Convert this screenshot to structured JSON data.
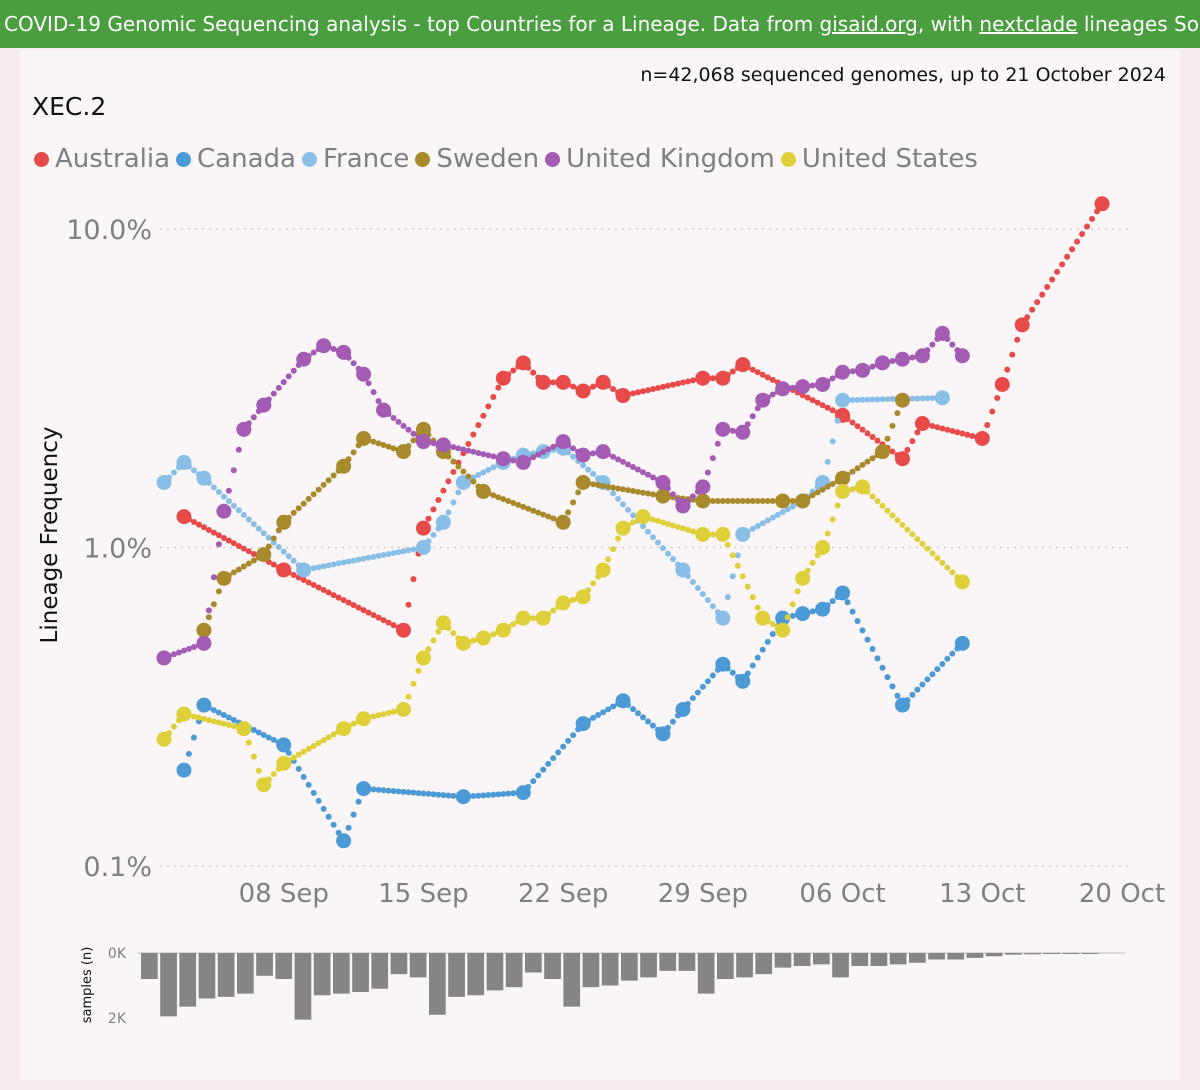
{
  "banner": {
    "part1": "COVID-19 Genomic Sequencing analysis - top Countries for a Lineage. Data from ",
    "link1": "gisaid.org",
    "part2": ", with ",
    "link2": "nextclade",
    "part3": " lineages So"
  },
  "note": "n=42,068 sequenced genomes, up to 21 October 2024",
  "lineage": "XEC.2",
  "colors": {
    "Australia": "#e84a4a",
    "Canada": "#4b9ad6",
    "France": "#89bfe6",
    "Sweden": "#a88a2c",
    "United Kingdom": "#a35bb4",
    "United States": "#dfd03a",
    "bars": "#858585",
    "grid": "#c8c8c8"
  },
  "chart_data": [
    {
      "type": "line",
      "title": "XEC.2",
      "ylabel": "Lineage Frequency",
      "xlabel": "",
      "yscale": "log",
      "ylim_percent": [
        0.1,
        12
      ],
      "y_ticks": [
        "10.0%",
        "1.0%",
        "0.1%"
      ],
      "y_tick_values": [
        10,
        1,
        0.1
      ],
      "x_ticks": [
        "08 Sep",
        "15 Sep",
        "22 Sep",
        "29 Sep",
        "06 Oct",
        "13 Oct",
        "20 Oct"
      ],
      "x_tick_days": [
        7,
        14,
        21,
        28,
        35,
        42,
        49
      ],
      "x_range_days": [
        1,
        49
      ],
      "legend": [
        "Australia",
        "Canada",
        "France",
        "Sweden",
        "United Kingdom",
        "United States"
      ],
      "legend_position": "top-left",
      "grid": "horizontal dotted",
      "series": [
        {
          "name": "Australia",
          "points": [
            [
              2,
              1.25
            ],
            [
              7,
              0.85
            ],
            [
              13,
              0.55
            ],
            [
              14,
              1.15
            ],
            [
              18,
              3.4
            ],
            [
              19,
              3.8
            ],
            [
              20,
              3.3
            ],
            [
              21,
              3.3
            ],
            [
              22,
              3.1
            ],
            [
              23,
              3.3
            ],
            [
              24,
              3.0
            ],
            [
              28,
              3.4
            ],
            [
              29,
              3.4
            ],
            [
              30,
              3.75
            ],
            [
              35,
              2.6
            ],
            [
              38,
              1.9
            ],
            [
              39,
              2.45
            ],
            [
              42,
              2.2
            ],
            [
              43,
              3.25
            ],
            [
              44,
              5.0
            ],
            [
              48,
              12.0
            ]
          ]
        },
        {
          "name": "Canada",
          "points": [
            [
              2,
              0.2
            ],
            [
              3,
              0.32
            ],
            [
              7,
              0.24
            ],
            [
              10,
              0.12
            ],
            [
              11,
              0.175
            ],
            [
              16,
              0.165
            ],
            [
              19,
              0.17
            ],
            [
              22,
              0.28
            ],
            [
              24,
              0.33
            ],
            [
              26,
              0.26
            ],
            [
              27,
              0.31
            ],
            [
              29,
              0.43
            ],
            [
              30,
              0.38
            ],
            [
              32,
              0.6
            ],
            [
              33,
              0.62
            ],
            [
              34,
              0.64
            ],
            [
              35,
              0.72
            ],
            [
              38,
              0.32
            ],
            [
              41,
              0.5
            ]
          ]
        },
        {
          "name": "France",
          "points": [
            [
              1,
              1.6
            ],
            [
              2,
              1.85
            ],
            [
              3,
              1.65
            ],
            [
              8,
              0.85
            ],
            [
              14,
              1.0
            ],
            [
              15,
              1.2
            ],
            [
              16,
              1.6
            ],
            [
              18,
              1.85
            ],
            [
              19,
              1.95
            ],
            [
              20,
              2.0
            ],
            [
              21,
              2.05
            ],
            [
              23,
              1.6
            ],
            [
              27,
              0.85
            ],
            [
              29,
              0.6
            ],
            [
              30,
              1.1
            ],
            [
              33,
              1.4
            ],
            [
              34,
              1.6
            ],
            [
              35,
              2.9
            ],
            [
              40,
              2.95
            ]
          ]
        },
        {
          "name": "Sweden",
          "points": [
            [
              3,
              0.55
            ],
            [
              4,
              0.8
            ],
            [
              6,
              0.95
            ],
            [
              7,
              1.2
            ],
            [
              10,
              1.8
            ],
            [
              11,
              2.2
            ],
            [
              13,
              2.0
            ],
            [
              14,
              2.35
            ],
            [
              15,
              2.0
            ],
            [
              17,
              1.5
            ],
            [
              21,
              1.2
            ],
            [
              22,
              1.6
            ],
            [
              26,
              1.45
            ],
            [
              28,
              1.4
            ],
            [
              32,
              1.4
            ],
            [
              33,
              1.4
            ],
            [
              35,
              1.65
            ],
            [
              37,
              2.0
            ],
            [
              38,
              2.9
            ]
          ]
        },
        {
          "name": "United Kingdom",
          "points": [
            [
              1,
              0.45
            ],
            [
              3,
              0.5
            ],
            [
              4,
              1.3
            ],
            [
              5,
              2.35
            ],
            [
              6,
              2.8
            ],
            [
              8,
              3.9
            ],
            [
              9,
              4.3
            ],
            [
              10,
              4.1
            ],
            [
              11,
              3.5
            ],
            [
              12,
              2.7
            ],
            [
              14,
              2.15
            ],
            [
              15,
              2.1
            ],
            [
              18,
              1.9
            ],
            [
              19,
              1.85
            ],
            [
              21,
              2.15
            ],
            [
              22,
              1.95
            ],
            [
              23,
              2.0
            ],
            [
              26,
              1.6
            ],
            [
              27,
              1.35
            ],
            [
              28,
              1.55
            ],
            [
              29,
              2.35
            ],
            [
              30,
              2.3
            ],
            [
              31,
              2.9
            ],
            [
              32,
              3.15
            ],
            [
              33,
              3.2
            ],
            [
              34,
              3.25
            ],
            [
              35,
              3.55
            ],
            [
              36,
              3.6
            ],
            [
              37,
              3.8
            ],
            [
              38,
              3.9
            ],
            [
              39,
              4.0
            ],
            [
              40,
              4.7
            ],
            [
              41,
              4.0
            ]
          ]
        },
        {
          "name": "United States",
          "points": [
            [
              1,
              0.25
            ],
            [
              2,
              0.3
            ],
            [
              5,
              0.27
            ],
            [
              6,
              0.18
            ],
            [
              7,
              0.21
            ],
            [
              10,
              0.27
            ],
            [
              11,
              0.29
            ],
            [
              13,
              0.31
            ],
            [
              14,
              0.45
            ],
            [
              15,
              0.58
            ],
            [
              16,
              0.5
            ],
            [
              17,
              0.52
            ],
            [
              18,
              0.55
            ],
            [
              19,
              0.6
            ],
            [
              20,
              0.6
            ],
            [
              21,
              0.67
            ],
            [
              22,
              0.7
            ],
            [
              23,
              0.85
            ],
            [
              24,
              1.15
            ],
            [
              25,
              1.25
            ],
            [
              28,
              1.1
            ],
            [
              29,
              1.1
            ],
            [
              31,
              0.6
            ],
            [
              32,
              0.55
            ],
            [
              33,
              0.8
            ],
            [
              34,
              1.0
            ],
            [
              35,
              1.5
            ],
            [
              36,
              1.55
            ],
            [
              41,
              0.78
            ]
          ]
        }
      ]
    },
    {
      "type": "bar",
      "ylabel": "samples (n)",
      "y_ticks": [
        "0K",
        "2K"
      ],
      "y_tick_values": [
        0,
        2000
      ],
      "ylim": [
        0,
        2000
      ],
      "x_range_days": [
        0,
        49
      ],
      "values": [
        800,
        1950,
        1650,
        1400,
        1350,
        1250,
        700,
        800,
        2050,
        1300,
        1250,
        1200,
        1100,
        650,
        750,
        1900,
        1350,
        1300,
        1150,
        1050,
        600,
        800,
        1650,
        1050,
        1000,
        850,
        750,
        550,
        550,
        1250,
        800,
        750,
        650,
        450,
        400,
        350,
        750,
        400,
        400,
        350,
        300,
        200,
        200,
        150,
        100,
        50,
        40,
        30,
        20,
        15
      ]
    }
  ]
}
